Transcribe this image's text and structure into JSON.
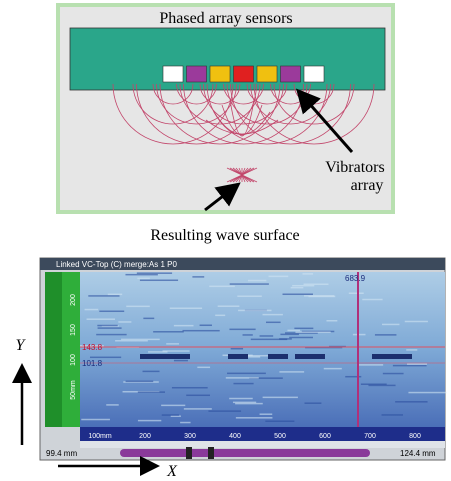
{
  "diagram": {
    "title": "Phased array sensors",
    "callout": [
      "Vibrators",
      "array"
    ],
    "caption": "Resulting wave surface"
  },
  "screenshot": {
    "header": "Linked VC-Top (C) merge:As 1 P0",
    "cursor_x": "683.9",
    "cursor_y": [
      "143.8",
      "101.8"
    ],
    "left_ruler": [
      "200",
      "150",
      "100",
      "50mm"
    ],
    "bottom_ruler": [
      "100mm",
      "200",
      "300",
      "400",
      "500",
      "600",
      "700",
      "800"
    ],
    "range_start": "99.4 mm",
    "range_end": "124.4 mm"
  },
  "axes": {
    "y": "Y",
    "x": "X"
  }
}
